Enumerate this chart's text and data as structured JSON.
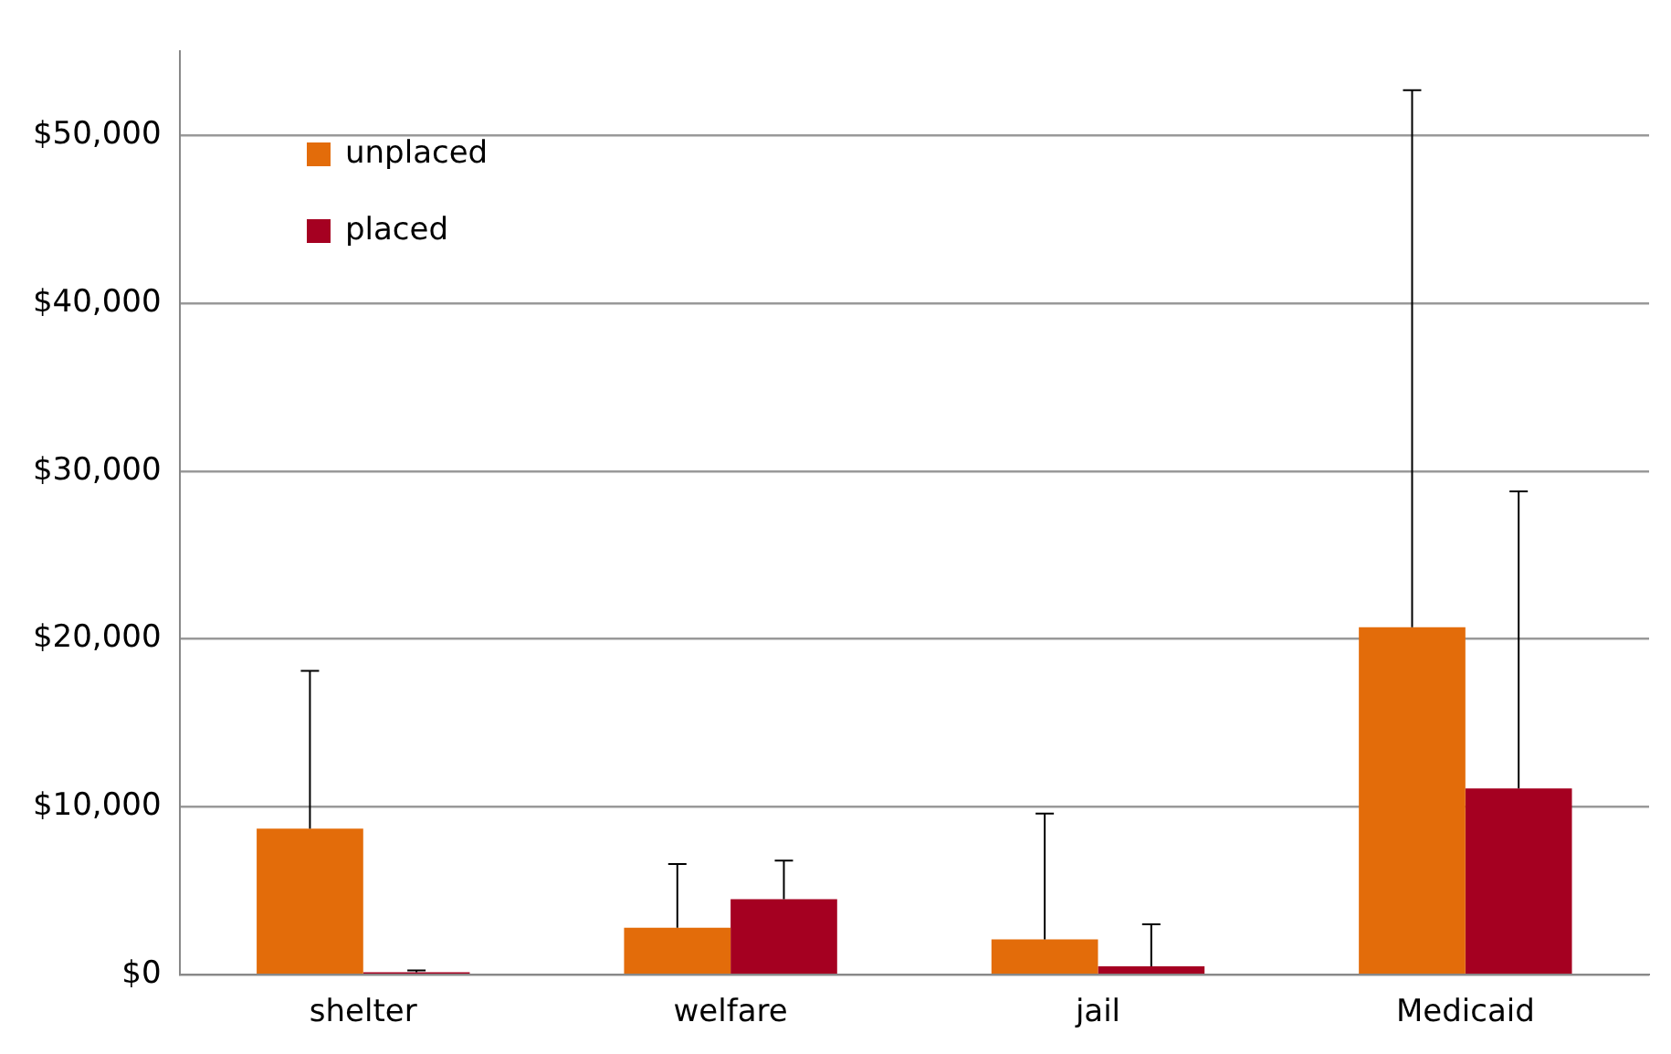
{
  "chart_data": {
    "type": "bar",
    "categories": [
      "shelter",
      "welfare",
      "jail",
      "Medicaid"
    ],
    "series": [
      {
        "name": "unplaced",
        "color": "#e36c0a",
        "values": [
          8700,
          2800,
          2100,
          20700
        ],
        "errors": [
          [
            8700,
            18100
          ],
          [
            2800,
            6600
          ],
          [
            2100,
            9600
          ],
          [
            20700,
            52700
          ]
        ]
      },
      {
        "name": "placed",
        "color": "#a50021",
        "values": [
          150,
          4500,
          500,
          11100
        ],
        "errors": [
          [
            150,
            250
          ],
          [
            4500,
            6800
          ],
          [
            500,
            3000
          ],
          [
            11100,
            28800
          ]
        ]
      }
    ],
    "ylim": [
      0,
      55000
    ],
    "yticks": [
      {
        "value": 0,
        "label": "$0"
      },
      {
        "value": 10000,
        "label": "$10,000"
      },
      {
        "value": 20000,
        "label": "$20,000"
      },
      {
        "value": 30000,
        "label": "$30,000"
      },
      {
        "value": 40000,
        "label": "$40,000"
      },
      {
        "value": 50000,
        "label": "$50,000"
      }
    ],
    "grid": "y",
    "legend": "top left"
  }
}
